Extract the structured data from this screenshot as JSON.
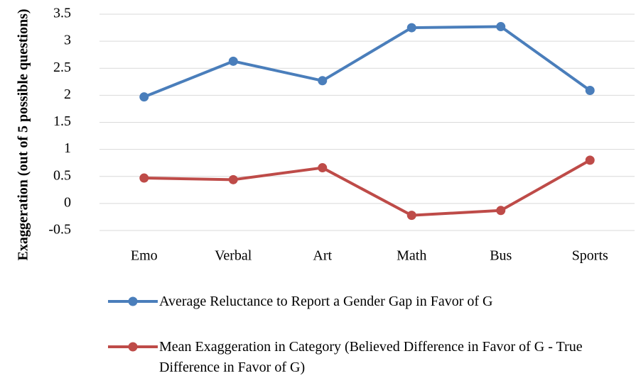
{
  "chart_data": {
    "type": "line",
    "y_label": "Exaggeration (out of 5 possible questions)",
    "categories": [
      "Emo",
      "Verbal",
      "Art",
      "Math",
      "Bus",
      "Sports"
    ],
    "series": [
      {
        "name": "Average Reluctance to Report a Gender Gap in Favor of G",
        "color": "#4a7ebb",
        "values": [
          1.97,
          2.63,
          2.27,
          3.25,
          3.27,
          2.09
        ]
      },
      {
        "name": "Mean Exaggeration in Category (Believed Difference in Favor of G - True Difference in Favor of G)",
        "color": "#be4b48",
        "values": [
          0.47,
          0.44,
          0.66,
          -0.22,
          -0.13,
          0.8
        ]
      }
    ],
    "ylim": [
      -0.5,
      3.5
    ],
    "yticks": [
      -0.5,
      0,
      0.5,
      1,
      1.5,
      2,
      2.5,
      3,
      3.5
    ],
    "grid": true
  }
}
